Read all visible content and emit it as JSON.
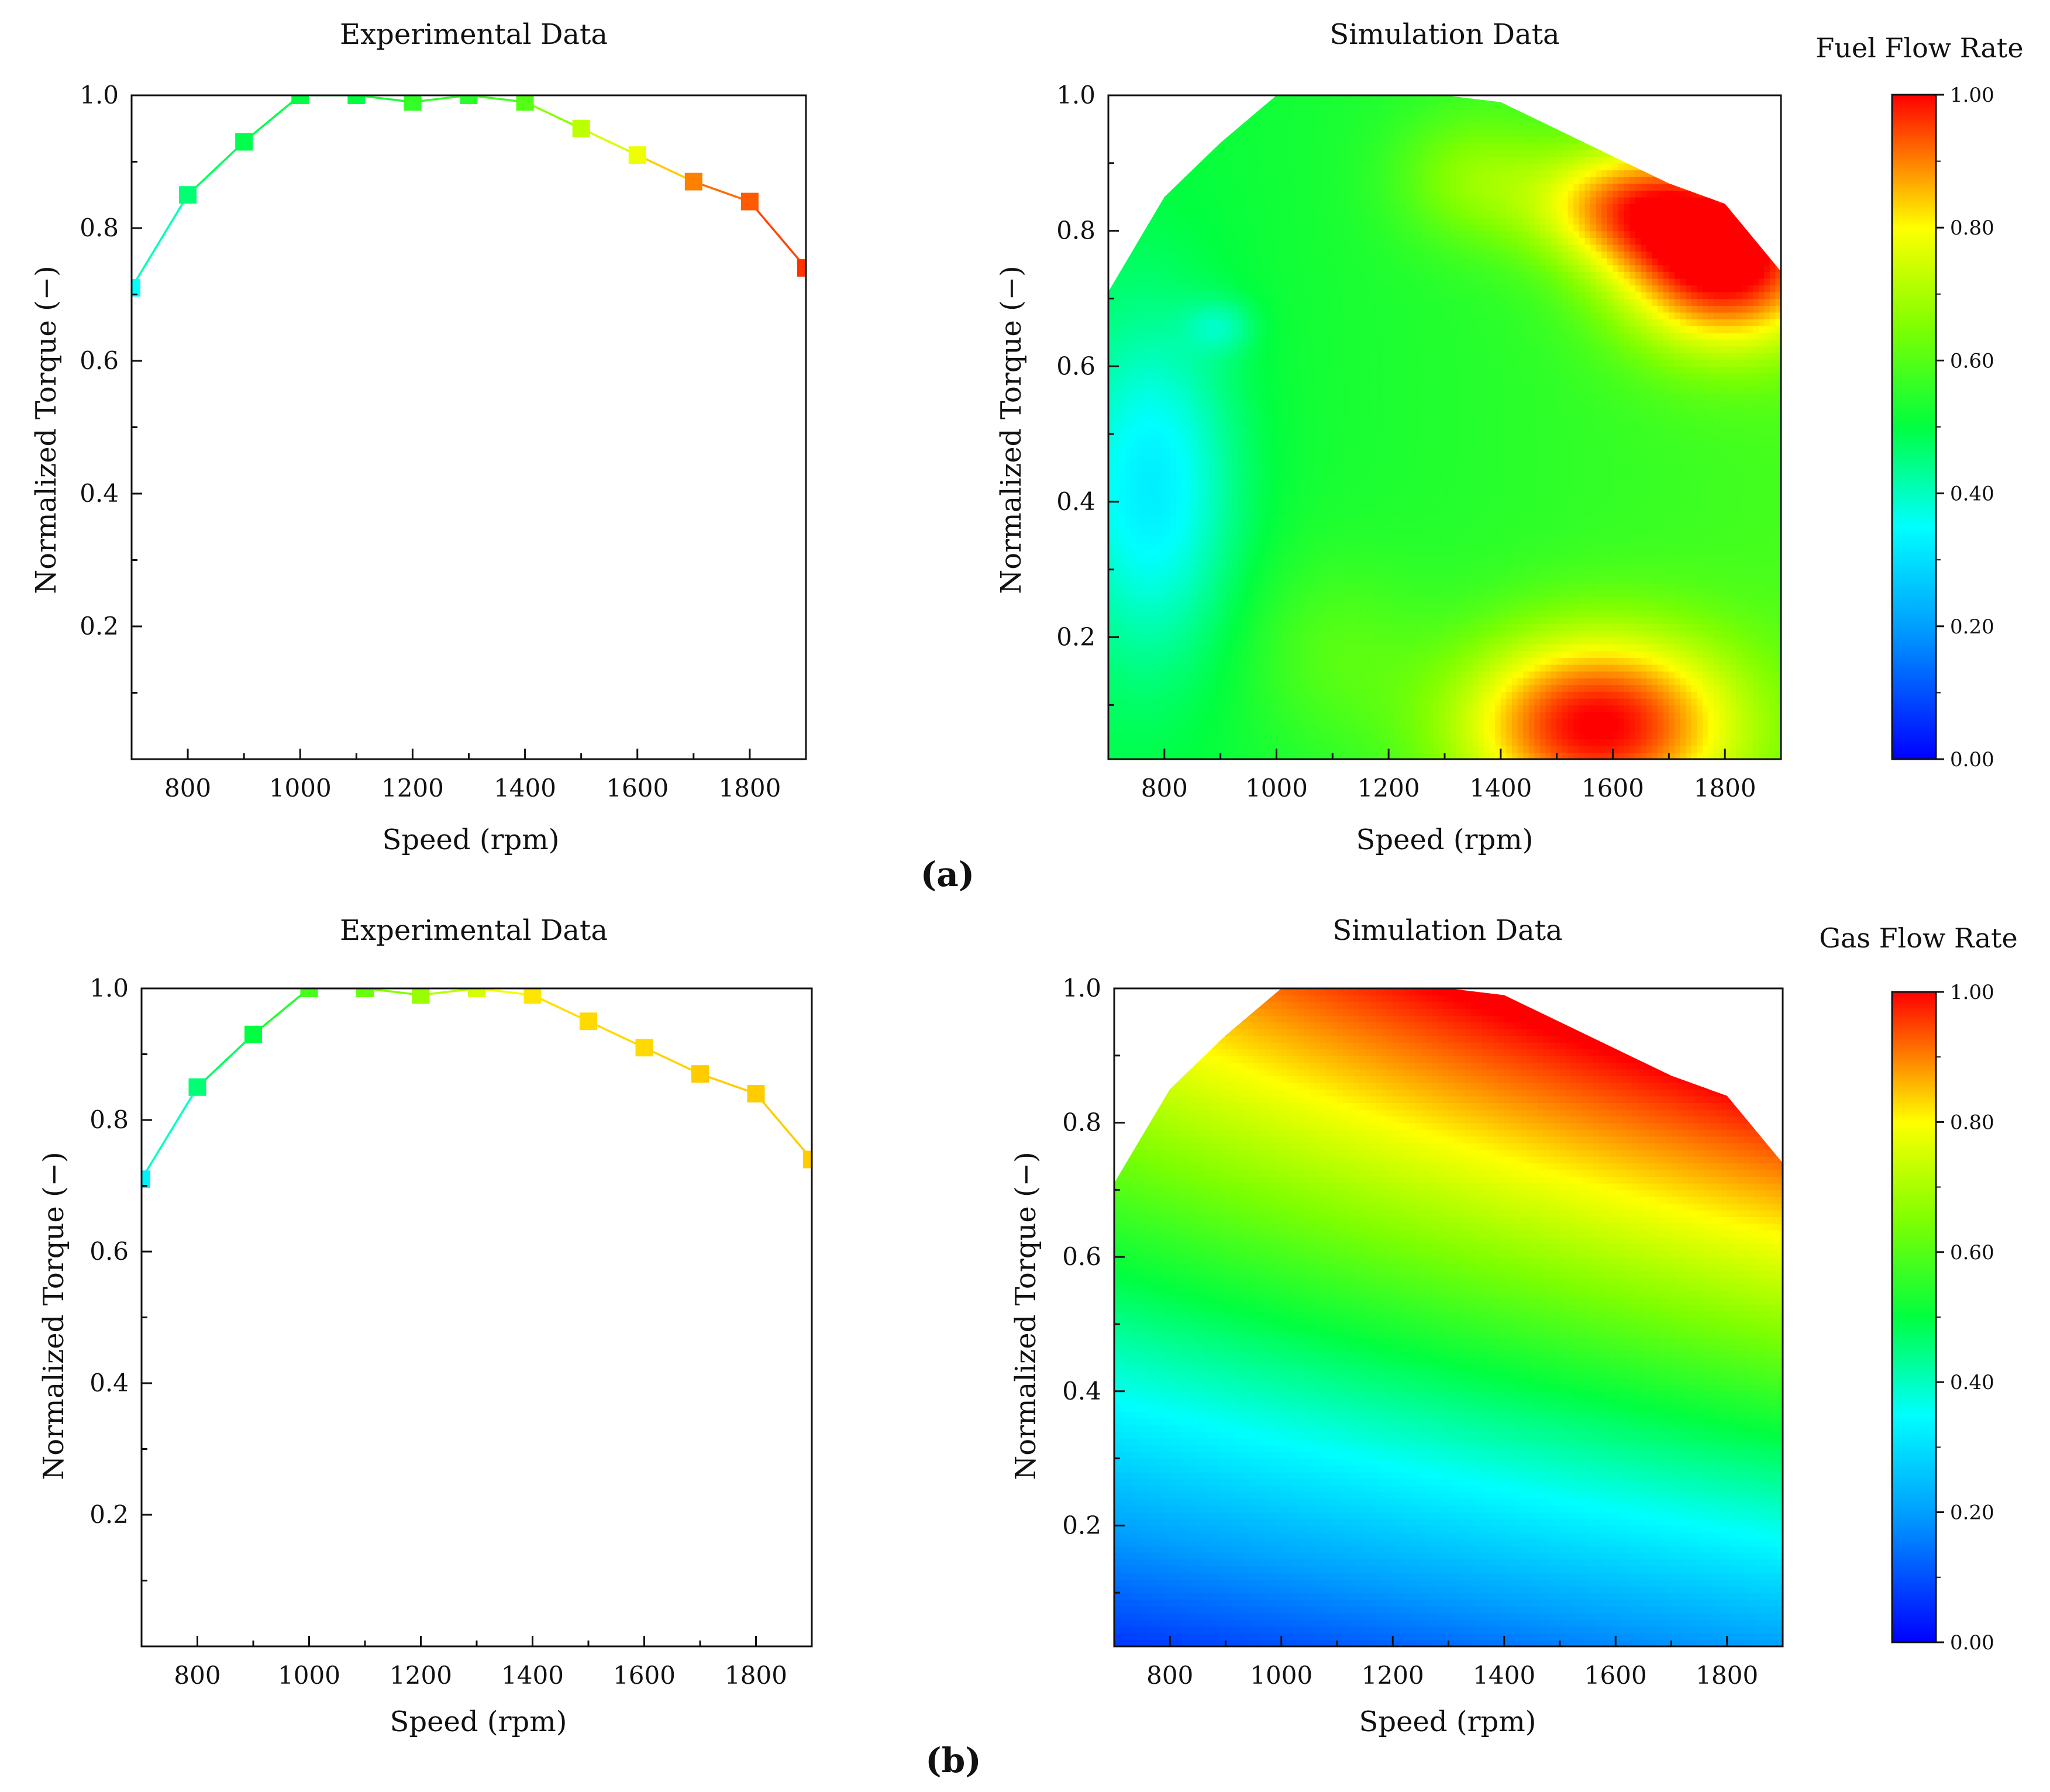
{
  "figure": {
    "panel_labels": [
      "(a)",
      "(b)"
    ]
  },
  "chart_data": [
    {
      "id": "a-exp",
      "type": "line",
      "title": "Experimental Data",
      "xlabel": "Speed (rpm)",
      "ylabel": "Normalized Torque (−)",
      "xlim": [
        700,
        1900
      ],
      "ylim": [
        0,
        1.0
      ],
      "xticks": [
        800,
        1000,
        1200,
        1400,
        1600,
        1800
      ],
      "yticks": [
        0.2,
        0.4,
        0.6,
        0.8,
        1.0
      ],
      "x": [
        700,
        800,
        900,
        1000,
        1100,
        1200,
        1300,
        1400,
        1500,
        1600,
        1700,
        1800,
        1900
      ],
      "y": [
        0.71,
        0.85,
        0.93,
        1.0,
        1.0,
        0.99,
        1.0,
        0.99,
        0.95,
        0.91,
        0.87,
        0.84,
        0.74
      ],
      "color_values": [
        0.35,
        0.46,
        0.49,
        0.5,
        0.5,
        0.56,
        0.55,
        0.6,
        0.72,
        0.78,
        0.9,
        0.93,
        0.96
      ],
      "marker": "square"
    },
    {
      "id": "a-sim",
      "type": "heatmap",
      "title": "Simulation Data",
      "xlabel": "Speed (rpm)",
      "ylabel": "Normalized Torque (−)",
      "xlim": [
        700,
        1900
      ],
      "ylim": [
        0.02,
        1.0
      ],
      "xticks": [
        800,
        1000,
        1200,
        1400,
        1600,
        1800
      ],
      "yticks": [
        0.2,
        0.4,
        0.6,
        0.8,
        1.0
      ],
      "boundary_x": [
        700,
        800,
        900,
        1000,
        1100,
        1200,
        1300,
        1400,
        1500,
        1600,
        1700,
        1800,
        1900
      ],
      "boundary_y": [
        0.71,
        0.85,
        0.93,
        1.0,
        1.0,
        1.0,
        1.0,
        0.99,
        0.95,
        0.91,
        0.87,
        0.84,
        0.74
      ],
      "field": "fuel",
      "colorbar": {
        "label": "Fuel Flow Rate",
        "range": [
          0,
          1
        ],
        "ticks": [
          "0.00",
          "0.20",
          "0.40",
          "0.60",
          "0.80",
          "1.00"
        ]
      }
    },
    {
      "id": "b-exp",
      "type": "line",
      "title": "Experimental Data",
      "xlabel": "Speed (rpm)",
      "ylabel": "Normalized Torque (−)",
      "xlim": [
        700,
        1900
      ],
      "ylim": [
        0,
        1.0
      ],
      "xticks": [
        800,
        1000,
        1200,
        1400,
        1600,
        1800
      ],
      "yticks": [
        0.2,
        0.4,
        0.6,
        0.8,
        1.0
      ],
      "x": [
        700,
        800,
        900,
        1000,
        1100,
        1200,
        1300,
        1400,
        1500,
        1600,
        1700,
        1800,
        1900
      ],
      "y": [
        0.71,
        0.85,
        0.93,
        1.0,
        1.0,
        0.99,
        1.0,
        0.99,
        0.95,
        0.91,
        0.87,
        0.84,
        0.74
      ],
      "color_values": [
        0.33,
        0.46,
        0.5,
        0.58,
        0.62,
        0.68,
        0.75,
        0.82,
        0.83,
        0.83,
        0.84,
        0.84,
        0.84
      ],
      "marker": "square"
    },
    {
      "id": "b-sim",
      "type": "heatmap",
      "title": "Simulation Data",
      "xlabel": "Speed (rpm)",
      "ylabel": "Normalized Torque (−)",
      "xlim": [
        700,
        1900
      ],
      "ylim": [
        0.02,
        1.0
      ],
      "xticks": [
        800,
        1000,
        1200,
        1400,
        1600,
        1800
      ],
      "yticks": [
        0.2,
        0.4,
        0.6,
        0.8,
        1.0
      ],
      "boundary_x": [
        700,
        800,
        900,
        1000,
        1100,
        1200,
        1300,
        1400,
        1500,
        1600,
        1700,
        1800,
        1900
      ],
      "boundary_y": [
        0.71,
        0.85,
        0.93,
        1.0,
        1.0,
        1.0,
        1.0,
        0.99,
        0.95,
        0.91,
        0.87,
        0.84,
        0.74
      ],
      "field": "gas",
      "colorbar": {
        "label": "Gas Flow Rate",
        "range": [
          0,
          1
        ],
        "ticks": [
          "0.00",
          "0.20",
          "0.40",
          "0.60",
          "0.80",
          "1.00"
        ]
      }
    }
  ]
}
